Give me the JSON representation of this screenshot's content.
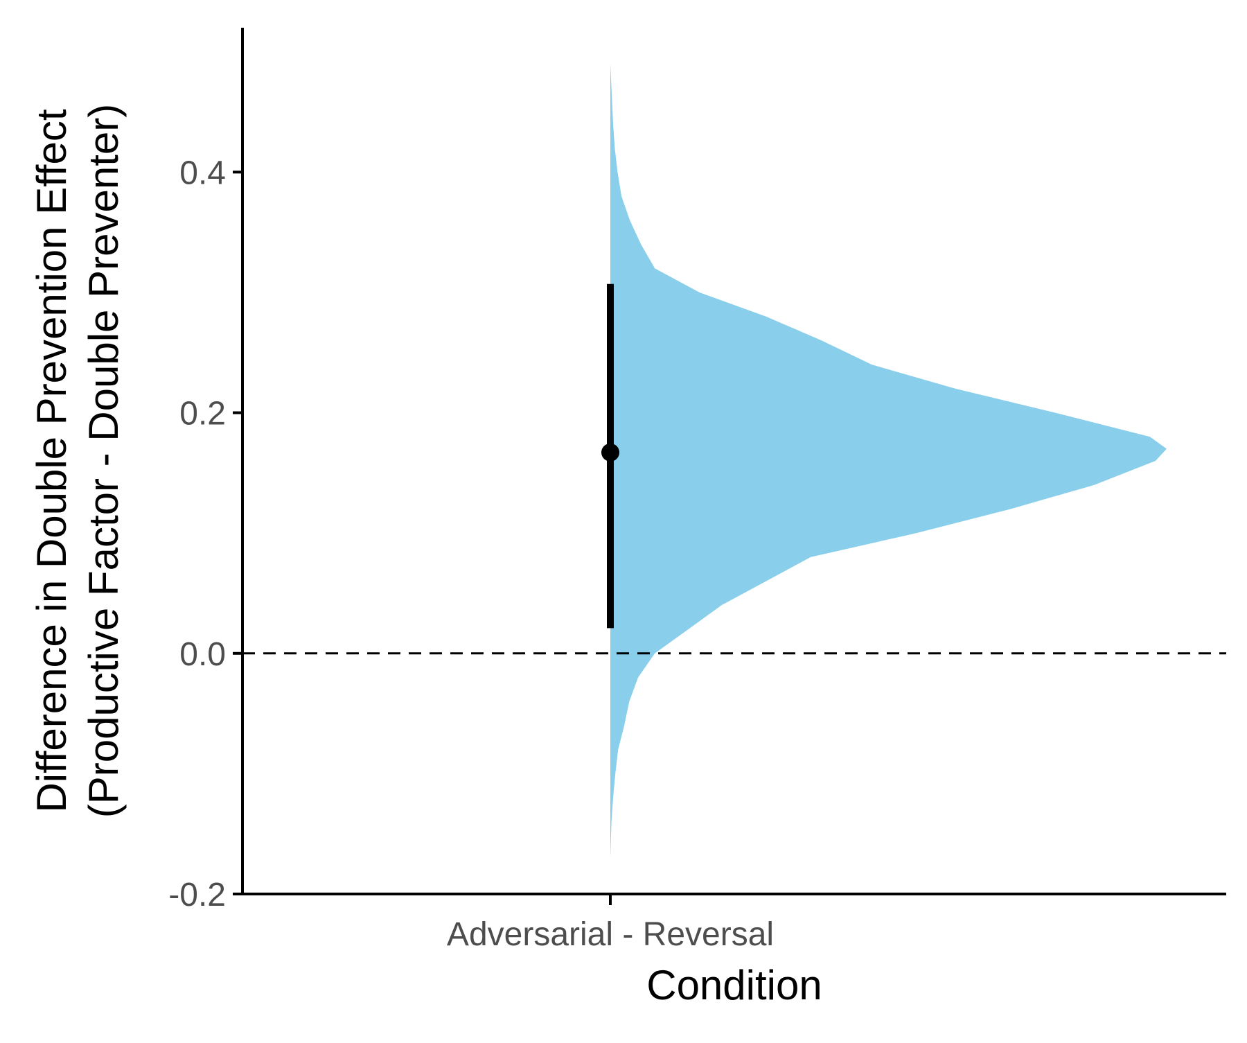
{
  "chart_data": {
    "type": "half-violin",
    "title": "",
    "xlabel": "Condition",
    "ylabel_lines": [
      "Difference in Double Prevention Effect",
      "(Productive Factor - Double Preventer)"
    ],
    "categories": [
      "Adversarial - Reversal"
    ],
    "ylim": [
      -0.2,
      0.52
    ],
    "yticks": [
      -0.2,
      0.0,
      0.2,
      0.4
    ],
    "ytick_labels": [
      "-0.2",
      "0.0",
      "0.2",
      "0.4"
    ],
    "reference_line": {
      "y": 0.0,
      "style": "dashed"
    },
    "point_estimate": {
      "category": "Adversarial - Reversal",
      "y": 0.167,
      "lower": 0.021,
      "upper": 0.307
    },
    "density": {
      "category": "Adversarial - Reversal",
      "y": [
        -0.17,
        -0.14,
        -0.12,
        -0.1,
        -0.08,
        -0.06,
        -0.04,
        -0.02,
        0.0,
        0.02,
        0.04,
        0.06,
        0.08,
        0.1,
        0.12,
        0.14,
        0.16,
        0.17,
        0.18,
        0.2,
        0.22,
        0.24,
        0.26,
        0.28,
        0.3,
        0.32,
        0.34,
        0.36,
        0.38,
        0.4,
        0.42,
        0.44,
        0.47,
        0.49
      ],
      "width": [
        0.0,
        0.002,
        0.005,
        0.009,
        0.014,
        0.025,
        0.034,
        0.05,
        0.08,
        0.14,
        0.2,
        0.28,
        0.36,
        0.55,
        0.72,
        0.87,
        0.98,
        1.0,
        0.97,
        0.8,
        0.62,
        0.47,
        0.38,
        0.28,
        0.16,
        0.08,
        0.055,
        0.035,
        0.02,
        0.013,
        0.008,
        0.005,
        0.002,
        0.0
      ]
    },
    "grid": false,
    "legend": "none",
    "colors": {
      "density_fill": "#89CEEA",
      "interval": "#000000",
      "axes": "#000000",
      "tick_text": "#4d4d4d"
    }
  }
}
